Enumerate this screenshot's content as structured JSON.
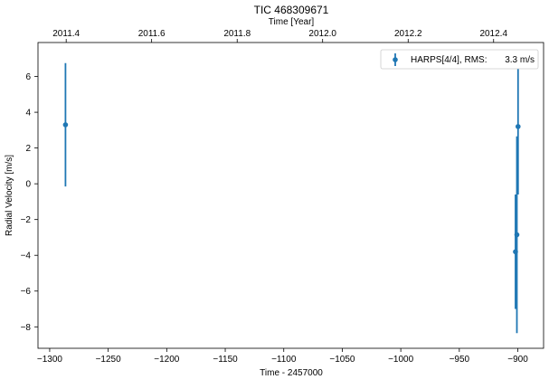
{
  "chart_data": {
    "type": "scatter",
    "title": "TIC 468309671",
    "xlabel": "Time - 2457000",
    "ylabel": "Radial Velocity [m/s]",
    "top_xlabel": "Time [Year]",
    "xlim": [
      -1310,
      -878
    ],
    "ylim": [
      -9.2,
      7.9
    ],
    "xticks": [
      -1300,
      -1250,
      -1200,
      -1150,
      -1100,
      -1050,
      -1000,
      -950,
      -900
    ],
    "xtick_labels": [
      "−1300",
      "−1250",
      "−1200",
      "−1150",
      "−1100",
      "−1050",
      "−1000",
      "−950",
      "−900"
    ],
    "yticks": [
      -8,
      -6,
      -4,
      -2,
      0,
      2,
      4,
      6
    ],
    "ytick_labels": [
      "−8",
      "−6",
      "−4",
      "−2",
      "0",
      "2",
      "4",
      "6"
    ],
    "top_ticks": [
      {
        "x": -1285.9,
        "label": "2011.4"
      },
      {
        "x": -1212.9,
        "label": "2011.6"
      },
      {
        "x": -1139.8,
        "label": "2011.8"
      },
      {
        "x": -1066.8,
        "label": "2012.0"
      },
      {
        "x": -993.7,
        "label": "2012.2"
      },
      {
        "x": -920.7,
        "label": "2012.4"
      }
    ],
    "series": [
      {
        "name": "HARPS[4/4], RMS:",
        "rms_label": "3.3 m/s",
        "color": "#1f77b4",
        "points": [
          {
            "x": -1286.5,
            "y": 3.3,
            "err": 3.45
          },
          {
            "x": -902.0,
            "y": -3.8,
            "err": 3.2
          },
          {
            "x": -900.8,
            "y": -2.85,
            "err": 5.5
          },
          {
            "x": -899.8,
            "y": 3.2,
            "err": 3.8
          }
        ]
      }
    ],
    "grid": false,
    "legend_position": "top-right"
  }
}
